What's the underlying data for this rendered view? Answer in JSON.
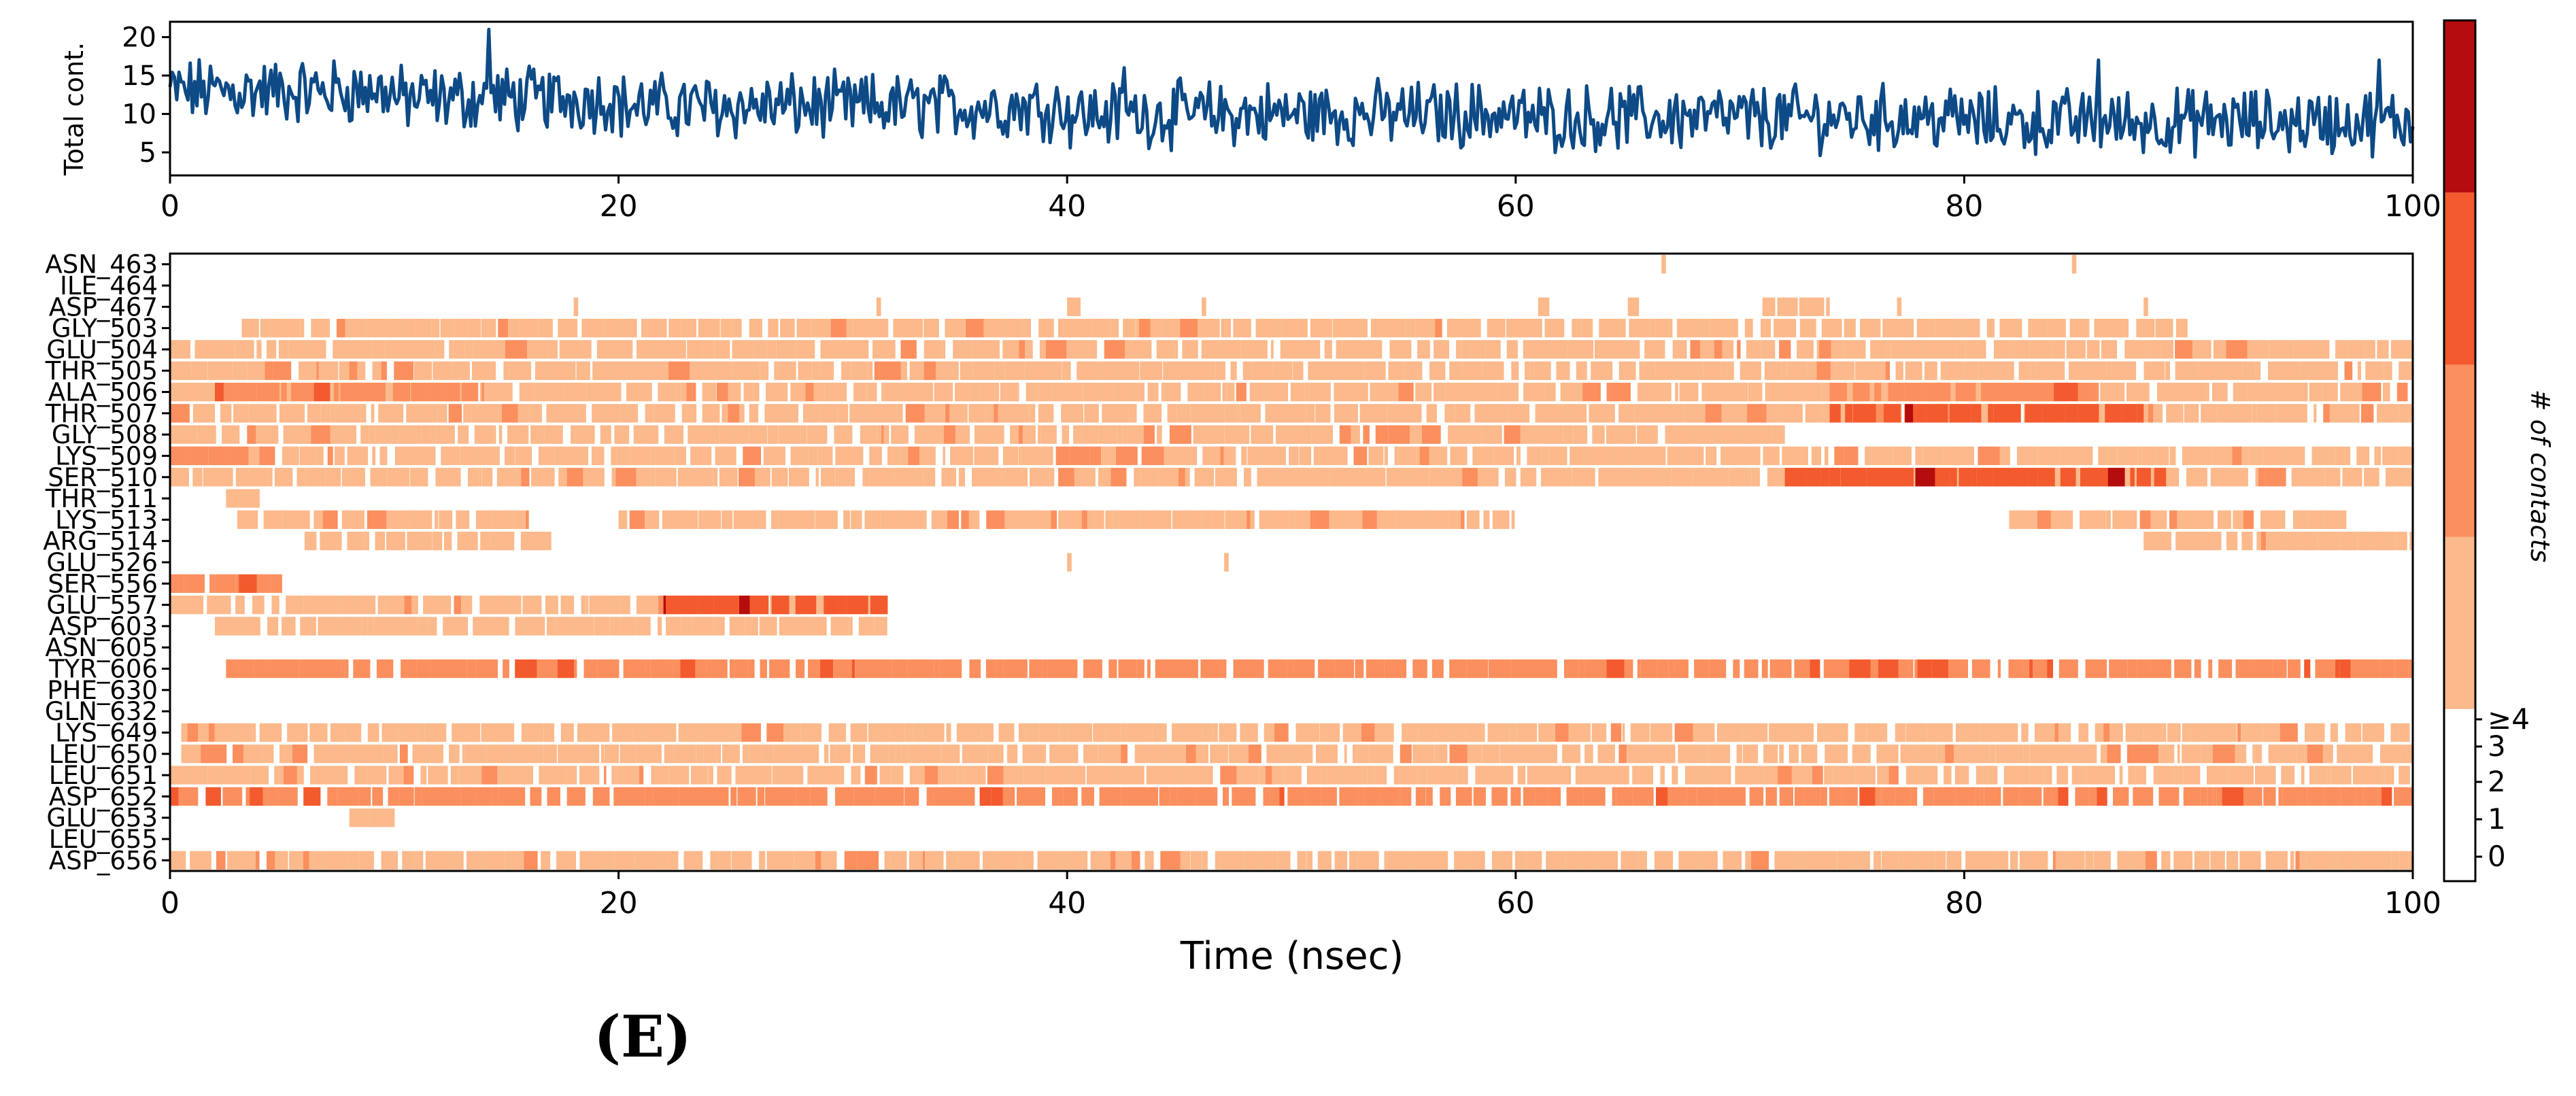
{
  "figure_label": "(E)",
  "colors": {
    "line": "#0d4a86",
    "level0": "#ffffff",
    "level1": "#fcb98b",
    "level2": "#fb8f5e",
    "level3": "#f35a2e",
    "level4": "#b50d0d"
  },
  "chart_data": [
    {
      "type": "line",
      "name": "total-contacts",
      "xlabel": "",
      "ylabel": "Total cont.",
      "xlim": [
        0,
        100
      ],
      "ylim": [
        2,
        22
      ],
      "xticks": [
        0,
        20,
        40,
        60,
        80,
        100
      ],
      "yticks": [
        5,
        10,
        15,
        20
      ],
      "x_range": [
        0,
        100
      ],
      "n_points": 1000,
      "approx_mean_by_segment": [
        {
          "x": [
            0,
            10
          ],
          "mean": 13
        },
        {
          "x": [
            10,
            20
          ],
          "mean": 12
        },
        {
          "x": [
            20,
            40
          ],
          "mean": 11
        },
        {
          "x": [
            40,
            60
          ],
          "mean": 10
        },
        {
          "x": [
            60,
            80
          ],
          "mean": 9.5
        },
        {
          "x": [
            80,
            100
          ],
          "mean": 9
        }
      ],
      "peaks": [
        {
          "x": 14.2,
          "y": 21
        },
        {
          "x": 42.5,
          "y": 16
        },
        {
          "x": 86,
          "y": 17
        },
        {
          "x": 98.5,
          "y": 17
        }
      ]
    },
    {
      "type": "heatmap",
      "name": "contacts-per-residue",
      "xlabel": "Time (nsec)",
      "ylabel": "",
      "xlim": [
        0,
        100
      ],
      "xticks": [
        0,
        20,
        40,
        60,
        80,
        100
      ],
      "colorbar_label": "# of contacts",
      "colorbar_ticks": [
        "0",
        "1",
        "2",
        "3",
        "≥4"
      ],
      "residues": [
        {
          "label": "ASN_463",
          "segments": [
            [
              66.5,
              66.7,
              1
            ],
            [
              84.8,
              85,
              1
            ]
          ]
        },
        {
          "label": "ILE_464",
          "segments": []
        },
        {
          "label": "ASP_467",
          "segments": [
            [
              18,
              18.2,
              1
            ],
            [
              31.5,
              31.7,
              1
            ],
            [
              40,
              40.6,
              1
            ],
            [
              46,
              46.2,
              1
            ],
            [
              61,
              61.5,
              1
            ],
            [
              65,
              65.5,
              1
            ],
            [
              71,
              74,
              1
            ],
            [
              77,
              77.2,
              1
            ],
            [
              88,
              88.2,
              1
            ]
          ]
        },
        {
          "label": "GLY_503",
          "segments": [
            [
              3.2,
              22,
              1
            ],
            [
              22,
              47,
              1
            ],
            [
              47,
              74,
              1
            ],
            [
              74,
              83,
              1
            ],
            [
              83,
              90,
              1
            ]
          ]
        },
        {
          "label": "GLU_504",
          "segments": [
            [
              0,
              100,
              1
            ]
          ]
        },
        {
          "label": "THR_505",
          "segments": [
            [
              0,
              100,
              1
            ]
          ]
        },
        {
          "label": "ALA_506",
          "segments": [
            [
              0,
              100,
              1
            ],
            [
              2,
              14,
              2
            ],
            [
              74,
              86,
              2
            ]
          ]
        },
        {
          "label": "THR_507",
          "segments": [
            [
              0,
              100,
              1
            ],
            [
              74,
              88,
              3
            ]
          ]
        },
        {
          "label": "GLY_508",
          "segments": [
            [
              0,
              72,
              1
            ]
          ]
        },
        {
          "label": "LYS_509",
          "segments": [
            [
              0,
              100,
              1
            ],
            [
              0,
              3.5,
              2
            ]
          ]
        },
        {
          "label": "SER_510",
          "segments": [
            [
              0,
              100,
              1
            ],
            [
              72,
              89,
              3
            ]
          ]
        },
        {
          "label": "THR_511",
          "segments": [
            [
              2.5,
              4,
              1
            ]
          ]
        },
        {
          "label": "LYS_513",
          "segments": [
            [
              3,
              16,
              1
            ],
            [
              20,
              60,
              1
            ],
            [
              82,
              97,
              1
            ]
          ]
        },
        {
          "label": "ARG_514",
          "segments": [
            [
              6,
              17,
              1
            ],
            [
              88,
              100,
              1
            ]
          ]
        },
        {
          "label": "GLU_526",
          "segments": [
            [
              40,
              40.2,
              1
            ],
            [
              47,
              47.2,
              1
            ]
          ]
        },
        {
          "label": "SER_556",
          "segments": [
            [
              0,
              5,
              2
            ]
          ]
        },
        {
          "label": "GLU_557",
          "segments": [
            [
              0,
              32,
              1
            ],
            [
              22,
              32,
              3
            ]
          ]
        },
        {
          "label": "ASP_603",
          "segments": [
            [
              2,
              32,
              1
            ]
          ]
        },
        {
          "label": "ASN_605",
          "segments": []
        },
        {
          "label": "TYR_606",
          "segments": [
            [
              2.5,
              100,
              2
            ]
          ]
        },
        {
          "label": "PHE_630",
          "segments": []
        },
        {
          "label": "GLN_632",
          "segments": []
        },
        {
          "label": "LYS_649",
          "segments": [
            [
              0.5,
              100,
              1
            ]
          ]
        },
        {
          "label": "LEU_650",
          "segments": [
            [
              0.5,
              100,
              1
            ]
          ]
        },
        {
          "label": "LEU_651",
          "segments": [
            [
              0,
              100,
              1
            ]
          ]
        },
        {
          "label": "ASP_652",
          "segments": [
            [
              0,
              100,
              2
            ]
          ]
        },
        {
          "label": "GLU_653",
          "segments": [
            [
              8,
              10,
              1
            ]
          ]
        },
        {
          "label": "LEU_655",
          "segments": []
        },
        {
          "label": "ASP_656",
          "segments": [
            [
              0,
              100,
              1
            ]
          ]
        }
      ]
    }
  ]
}
